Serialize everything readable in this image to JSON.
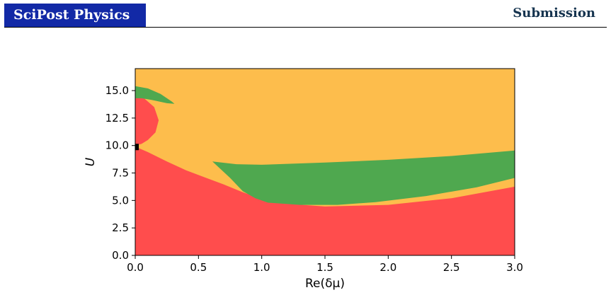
{
  "header": {
    "journal": "SciPost Physics",
    "section": "Submission"
  },
  "chart_data": {
    "type": "area",
    "xlabel": "Re(δμ)",
    "ylabel": "U",
    "xlim": [
      0.0,
      3.0
    ],
    "ylim": [
      0.0,
      17.0
    ],
    "x_ticks": [
      "0.0",
      "0.5",
      "1.0",
      "1.5",
      "2.0",
      "2.5",
      "3.0"
    ],
    "y_ticks": [
      "0.0",
      "2.5",
      "5.0",
      "7.5",
      "10.0",
      "12.5",
      "15.0"
    ],
    "grid": false,
    "colors": {
      "background_region": "#fdbd4c",
      "red_region": "#ff4d4d",
      "green_region": "#4fa84f",
      "marker": "#000000"
    },
    "regions": [
      {
        "color_key": "red_region",
        "boundary": [
          [
            0.0,
            9.9
          ],
          [
            0.1,
            9.4
          ],
          [
            0.25,
            8.55
          ],
          [
            0.4,
            7.75
          ],
          [
            0.55,
            7.1
          ],
          [
            0.7,
            6.45
          ],
          [
            0.85,
            5.75
          ],
          [
            1.0,
            5.15
          ],
          [
            1.2,
            4.7
          ],
          [
            1.5,
            4.45
          ],
          [
            2.0,
            4.6
          ],
          [
            2.5,
            5.2
          ],
          [
            3.0,
            6.25
          ],
          [
            3.0,
            0.0
          ],
          [
            0.0,
            0.0
          ]
        ]
      },
      {
        "color_key": "red_region",
        "boundary": [
          [
            0.0,
            14.5
          ],
          [
            0.07,
            14.3
          ],
          [
            0.15,
            13.5
          ],
          [
            0.185,
            12.3
          ],
          [
            0.16,
            11.2
          ],
          [
            0.1,
            10.5
          ],
          [
            0.05,
            10.15
          ],
          [
            0.0,
            10.0
          ]
        ]
      },
      {
        "color_key": "green_region",
        "boundary": [
          [
            0.0,
            15.4
          ],
          [
            0.1,
            15.2
          ],
          [
            0.2,
            14.7
          ],
          [
            0.29,
            14.0
          ],
          [
            0.31,
            13.8
          ],
          [
            0.25,
            13.85
          ],
          [
            0.13,
            14.15
          ],
          [
            0.05,
            14.3
          ],
          [
            0.0,
            14.3
          ]
        ]
      },
      {
        "color_key": "green_region",
        "boundary": [
          [
            0.61,
            8.55
          ],
          [
            0.8,
            8.3
          ],
          [
            1.0,
            8.25
          ],
          [
            1.5,
            8.45
          ],
          [
            2.0,
            8.7
          ],
          [
            2.5,
            9.05
          ],
          [
            3.0,
            9.55
          ],
          [
            3.0,
            7.05
          ],
          [
            2.7,
            6.2
          ],
          [
            2.3,
            5.4
          ],
          [
            1.9,
            4.85
          ],
          [
            1.6,
            4.6
          ],
          [
            1.3,
            4.6
          ],
          [
            1.05,
            4.8
          ],
          [
            0.95,
            5.2
          ],
          [
            0.85,
            5.85
          ],
          [
            0.75,
            7.05
          ]
        ]
      }
    ],
    "marker_point": [
      0.0,
      9.9
    ]
  }
}
